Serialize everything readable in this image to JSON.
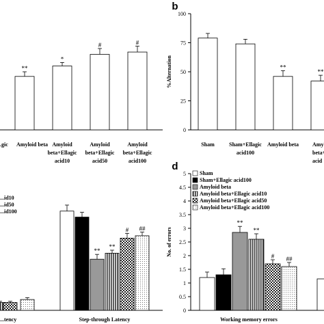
{
  "chart_data": [
    {
      "id": "a",
      "type": "bar",
      "panel_letter": "",
      "ylim": [
        0,
        100
      ],
      "categories": [
        "...gic",
        "Amyloid beta",
        "Amyloid beta+Ellagic acid10",
        "Amyloid beta+Ellagic acid50",
        "Amyloid beta+Ellagic acid100"
      ],
      "category_lines": [
        [
          "...gic"
        ],
        [
          "Amyloid beta"
        ],
        [
          "Amyloid",
          "beta+Ellagic",
          "acid10"
        ],
        [
          "Amyloid",
          "beta+Ellagic",
          "acid50"
        ],
        [
          "Amyloid",
          "beta+Ellagic",
          "acid100"
        ]
      ],
      "values": [
        null,
        46,
        55,
        65,
        67
      ],
      "errors": [
        null,
        4,
        3,
        5,
        5
      ],
      "significance": [
        "",
        "**",
        "*",
        "#",
        "#"
      ]
    },
    {
      "id": "b",
      "type": "bar",
      "panel_letter": "b",
      "ylabel": "%Alternation",
      "ylim": [
        0,
        100
      ],
      "yticks": [
        0,
        25,
        50,
        75,
        100
      ],
      "categories": [
        "Sham",
        "Sham+Ellagic acid100",
        "Amyloid beta",
        "Amyloid beta+Ellagic acid10"
      ],
      "category_lines": [
        [
          "Sham"
        ],
        [
          "Sham+Ellagic",
          "acid100"
        ],
        [
          "Amyloid beta"
        ],
        [
          "Amyl",
          "beta+E",
          "acid"
        ]
      ],
      "values": [
        79,
        74,
        46,
        42
      ],
      "errors": [
        4,
        4,
        5,
        5
      ],
      "significance": [
        "",
        "",
        "**",
        "**"
      ]
    },
    {
      "id": "c",
      "type": "bar",
      "panel_letter": "",
      "ylim": [
        0,
        200
      ],
      "groups": [
        "...tency",
        "Step-through Latency"
      ],
      "legend": [
        "...id10",
        "...id50",
        "...id100"
      ],
      "series": [
        {
          "name": "Sham",
          "values": [
            null,
            165
          ]
        },
        {
          "name": "Sham+Ellagic acid100",
          "values": [
            null,
            155
          ]
        },
        {
          "name": "Amyloid beta",
          "values": [
            null,
            85
          ]
        },
        {
          "name": "Amyloid beta+Ellagic acid10",
          "values": [
            13,
            95
          ]
        },
        {
          "name": "Amyloid beta+Ellagic acid50",
          "values": [
            13,
            120
          ]
        },
        {
          "name": "Amyloid beta+Ellagic acid100",
          "values": [
            18,
            124
          ]
        }
      ],
      "errors": [
        [
          null,
          10
        ],
        [
          null,
          8
        ],
        [
          null,
          8
        ],
        [
          2,
          5
        ],
        [
          2,
          8
        ],
        [
          3,
          6
        ]
      ],
      "significance": [
        [
          "",
          ""
        ],
        [
          "",
          ""
        ],
        [
          "",
          "**"
        ],
        [
          "",
          "**"
        ],
        [
          "",
          "#"
        ],
        [
          "",
          "##"
        ]
      ]
    },
    {
      "id": "d",
      "type": "bar",
      "panel_letter": "d",
      "ylabel": "No. of errors",
      "ylim": [
        0,
        5
      ],
      "yticks": [
        0,
        0.5,
        1,
        1.5,
        2,
        2.5,
        3,
        3.5,
        4,
        4.5,
        5
      ],
      "ytick_labels": [
        "0",
        "0.5",
        "1",
        "1.5",
        "2",
        "2.5",
        "3",
        "3.5",
        "4",
        "4.5",
        "5"
      ],
      "groups": [
        "Working memory errors"
      ],
      "legend": [
        "Sham",
        "Sham+Ellagic acid100",
        "Amyloid beta",
        "Amyloid beta+Ellagic acid10",
        "Amyloid beta+Ellagic acid50",
        "Amyloid beta+Ellagic acid100"
      ],
      "series": [
        {
          "name": "Sham",
          "values": [
            1.2
          ]
        },
        {
          "name": "Sham+Ellagic acid100",
          "values": [
            1.3
          ]
        },
        {
          "name": "Amyloid beta",
          "values": [
            2.85
          ]
        },
        {
          "name": "Amyloid beta+Ellagic acid10",
          "values": [
            2.6
          ]
        },
        {
          "name": "Amyloid beta+Ellagic acid50",
          "values": [
            1.7
          ]
        },
        {
          "name": "Amyloid beta+Ellagic acid100",
          "values": [
            1.6
          ]
        }
      ],
      "errors": [
        [
          0.2
        ],
        [
          0.22
        ],
        [
          0.22
        ],
        [
          0.2
        ],
        [
          0.15
        ],
        [
          0.15
        ]
      ],
      "significance": [
        [
          ""
        ],
        [
          ""
        ],
        [
          "**"
        ],
        [
          "**"
        ],
        [
          "#"
        ],
        [
          "##"
        ]
      ],
      "partial_bar": 1.15
    }
  ],
  "styles": {
    "fills": [
      "#ffffff",
      "#000000",
      "#999999",
      "pattern-vstripe",
      "pattern-check",
      "pattern-dot"
    ]
  }
}
